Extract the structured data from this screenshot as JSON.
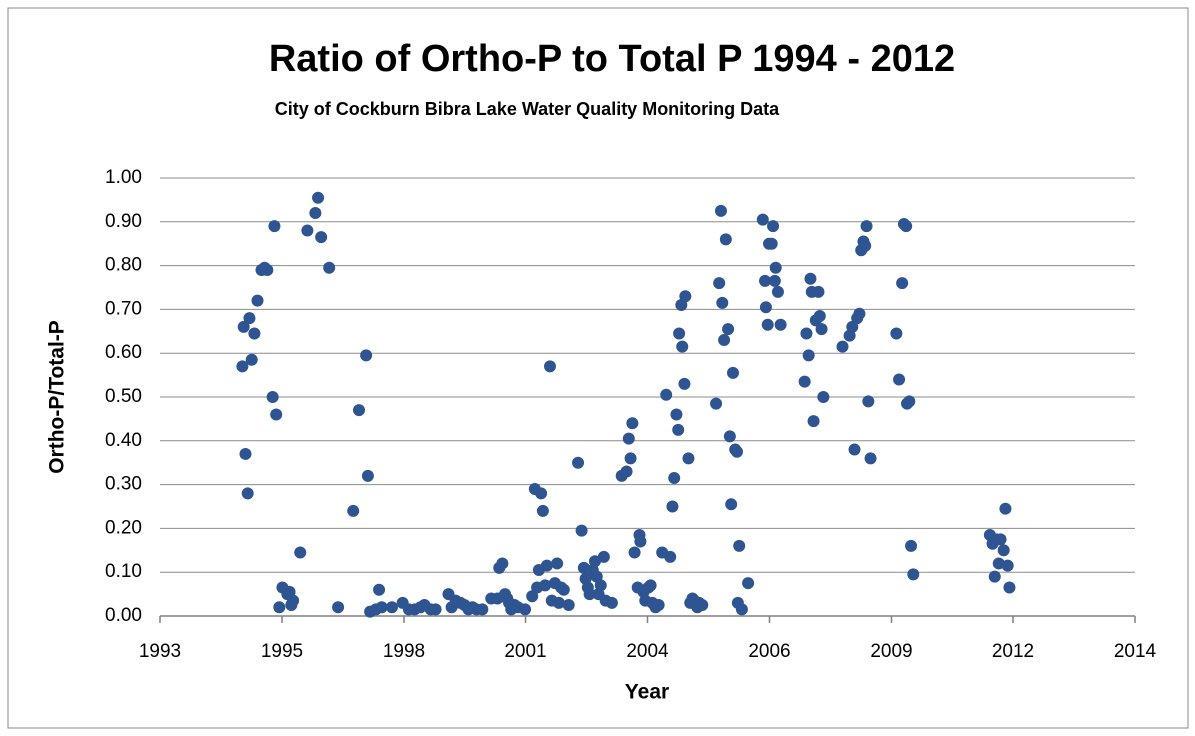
{
  "chart_data": {
    "type": "scatter",
    "title": "Ratio of Ortho-P to Total P 1994 - 2012",
    "subtitle": "City of Cockburn Bibra Lake Water Quality Monitoring Data",
    "x_label": "Year",
    "y_label": "Ortho-P/Total-P",
    "color": "#2e5591",
    "grid": true,
    "xlim": [
      1993,
      2014.9
    ],
    "xticks": [
      {
        "value": 1993,
        "label": "1993"
      },
      {
        "value": 1995.74,
        "label": "1995"
      },
      {
        "value": 1998.48,
        "label": "1998"
      },
      {
        "value": 2001.21,
        "label": "2001"
      },
      {
        "value": 2003.95,
        "label": "2004"
      },
      {
        "value": 2006.69,
        "label": "2006"
      },
      {
        "value": 2009.43,
        "label": "2009"
      },
      {
        "value": 2012.16,
        "label": "2012"
      },
      {
        "value": 2014.9,
        "label": "2014"
      }
    ],
    "ylim": [
      0,
      1
    ],
    "yticks": [
      {
        "value": 0,
        "label": "0.00"
      },
      {
        "value": 0.1,
        "label": "0.10"
      },
      {
        "value": 0.2,
        "label": "0.20"
      },
      {
        "value": 0.3,
        "label": "0.30"
      },
      {
        "value": 0.4,
        "label": "0.40"
      },
      {
        "value": 0.5,
        "label": "0.50"
      },
      {
        "value": 0.6,
        "label": "0.60"
      },
      {
        "value": 0.7,
        "label": "0.70"
      },
      {
        "value": 0.8,
        "label": "0.80"
      },
      {
        "value": 0.9,
        "label": "0.90"
      },
      {
        "value": 1,
        "label": "1.00"
      }
    ],
    "x": [
      1994.85,
      1994.88,
      1994.92,
      1994.97,
      1995.01,
      1995.06,
      1995.12,
      1995.19,
      1995.28,
      1995.35,
      1995.41,
      1995.53,
      1995.57,
      1995.61,
      1995.68,
      1995.75,
      1995.86,
      1995.91,
      1995.95,
      1995.99,
      1996.15,
      1996.31,
      1996.49,
      1996.55,
      1996.62,
      1996.8,
      1997.0,
      1997.34,
      1997.47,
      1997.63,
      1997.67,
      1997.72,
      1997.85,
      1997.92,
      1997.98,
      1998.21,
      1998.45,
      1998.59,
      1998.72,
      1998.85,
      1998.94,
      1999.08,
      1999.19,
      1999.48,
      1999.55,
      1999.64,
      1999.75,
      1999.84,
      1999.93,
      2000.02,
      2000.11,
      2000.24,
      2000.44,
      2000.58,
      2000.62,
      2000.69,
      2000.75,
      2000.8,
      2000.84,
      2000.89,
      2000.96,
      2001.04,
      2001.2,
      2001.36,
      2001.42,
      2001.47,
      2001.51,
      2001.56,
      2001.6,
      2001.65,
      2001.69,
      2001.76,
      2001.8,
      2001.87,
      2001.92,
      2001.96,
      2002.01,
      2002.07,
      2002.18,
      2002.39,
      2002.47,
      2002.52,
      2002.56,
      2002.61,
      2002.65,
      2002.72,
      2002.77,
      2002.81,
      2002.85,
      2002.9,
      2002.97,
      2003.01,
      2003.15,
      2003.37,
      2003.48,
      2003.53,
      2003.57,
      2003.61,
      2003.66,
      2003.73,
      2003.77,
      2003.79,
      2003.86,
      2003.9,
      2003.97,
      2004.02,
      2004.06,
      2004.13,
      2004.2,
      2004.28,
      2004.37,
      2004.46,
      2004.51,
      2004.55,
      2004.6,
      2004.64,
      2004.66,
      2004.71,
      2004.73,
      2004.78,
      2004.8,
      2004.87,
      2004.91,
      2004.96,
      2005.0,
      2005.07,
      2005.11,
      2005.18,
      2005.49,
      2005.56,
      2005.6,
      2005.63,
      2005.67,
      2005.71,
      2005.76,
      2005.8,
      2005.83,
      2005.87,
      2005.92,
      2005.96,
      2006.01,
      2005.98,
      2006.07,
      2006.21,
      2006.54,
      2006.59,
      2006.61,
      2006.65,
      2006.68,
      2006.74,
      2006.77,
      2006.81,
      2006.83,
      2006.88,
      2006.94,
      2007.48,
      2007.52,
      2007.57,
      2007.61,
      2007.64,
      2007.68,
      2007.73,
      2007.79,
      2007.82,
      2007.86,
      2007.9,
      2008.33,
      2008.49,
      2008.55,
      2008.6,
      2008.66,
      2008.71,
      2008.75,
      2008.8,
      2008.84,
      2008.87,
      2008.91,
      2008.96,
      2009.54,
      2009.6,
      2009.67,
      2009.71,
      2009.76,
      2009.78,
      2009.83,
      2009.87,
      2009.92,
      2011.64,
      2011.7,
      2011.75,
      2011.79,
      2011.84,
      2011.88,
      2011.95,
      2011.99,
      2012.04,
      2012.08
    ],
    "values": [
      0.57,
      0.66,
      0.37,
      0.28,
      0.68,
      0.585,
      0.645,
      0.72,
      0.79,
      0.795,
      0.79,
      0.5,
      0.89,
      0.46,
      0.02,
      0.065,
      0.05,
      0.055,
      0.025,
      0.035,
      0.145,
      0.88,
      0.92,
      0.955,
      0.865,
      0.795,
      0.02,
      0.24,
      0.47,
      0.595,
      0.32,
      0.01,
      0.015,
      0.06,
      0.02,
      0.02,
      0.03,
      0.015,
      0.015,
      0.02,
      0.025,
      0.015,
      0.015,
      0.05,
      0.02,
      0.035,
      0.03,
      0.025,
      0.015,
      0.02,
      0.015,
      0.015,
      0.04,
      0.04,
      0.11,
      0.12,
      0.05,
      0.04,
      0.03,
      0.015,
      0.025,
      0.02,
      0.015,
      0.045,
      0.29,
      0.065,
      0.105,
      0.28,
      0.24,
      0.07,
      0.115,
      0.57,
      0.035,
      0.075,
      0.12,
      0.03,
      0.065,
      0.06,
      0.025,
      0.35,
      0.195,
      0.11,
      0.085,
      0.065,
      0.05,
      0.105,
      0.125,
      0.09,
      0.05,
      0.07,
      0.135,
      0.035,
      0.03,
      0.32,
      0.33,
      0.405,
      0.36,
      0.44,
      0.145,
      0.065,
      0.185,
      0.17,
      0.055,
      0.035,
      0.065,
      0.07,
      0.03,
      0.02,
      0.025,
      0.145,
      0.505,
      0.135,
      0.25,
      0.315,
      0.46,
      0.425,
      0.645,
      0.71,
      0.615,
      0.53,
      0.73,
      0.36,
      0.03,
      0.04,
      0.035,
      0.02,
      0.03,
      0.025,
      0.485,
      0.76,
      0.925,
      0.715,
      0.63,
      0.86,
      0.655,
      0.41,
      0.255,
      0.555,
      0.38,
      0.375,
      0.16,
      0.03,
      0.015,
      0.075,
      0.905,
      0.765,
      0.705,
      0.665,
      0.85,
      0.85,
      0.89,
      0.765,
      0.795,
      0.74,
      0.665,
      0.535,
      0.645,
      0.595,
      0.77,
      0.74,
      0.445,
      0.675,
      0.74,
      0.685,
      0.655,
      0.5,
      0.615,
      0.64,
      0.66,
      0.38,
      0.68,
      0.69,
      0.835,
      0.855,
      0.845,
      0.89,
      0.49,
      0.36,
      0.645,
      0.54,
      0.76,
      0.895,
      0.89,
      0.485,
      0.49,
      0.16,
      0.095,
      0.185,
      0.165,
      0.09,
      0.175,
      0.12,
      0.175,
      0.15,
      0.245,
      0.115,
      0.065
    ]
  }
}
